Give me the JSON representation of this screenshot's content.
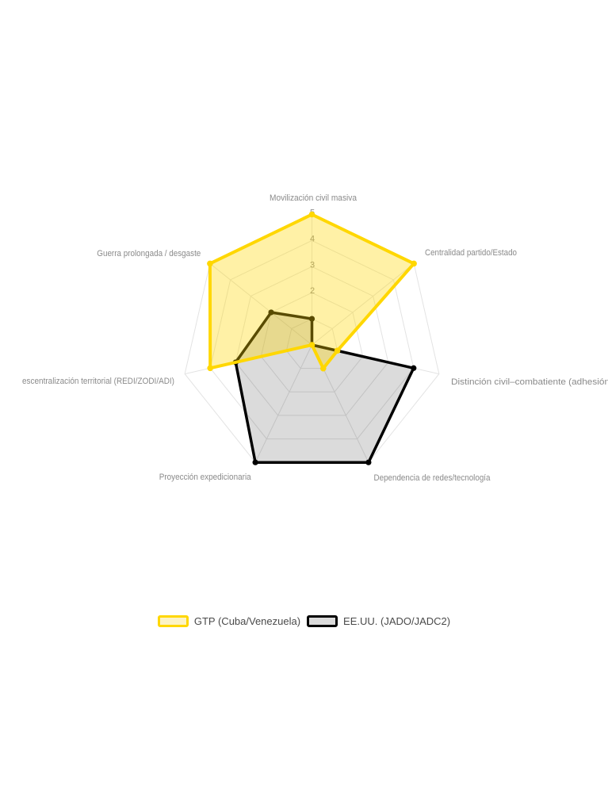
{
  "chart_data": {
    "type": "radar",
    "title": "",
    "categories": [
      "Movilización civil masiva",
      "Centralidad partido/Estado",
      "Distinción civil–combatiente (adhesión",
      "Dependencia de redes/tecnología",
      "Proyección expedicionaria",
      "escentralización territorial (REDI/ZODI/ADI)",
      "Guerra prolongada / desgaste"
    ],
    "series": [
      {
        "name": "GTP (Cuba/Venezuela)",
        "values": [
          5,
          5,
          1,
          1,
          0,
          4,
          5
        ],
        "color": "#FFD700",
        "fill": "rgba(255,215,0,0.35)"
      },
      {
        "name": "EE.UU. (JADO/JADC2)",
        "values": [
          1,
          0,
          4,
          5,
          5,
          3,
          2
        ],
        "color": "#000000",
        "fill": "rgba(0,0,0,0.14)"
      }
    ],
    "radial_ticks": [
      2,
      3,
      4,
      5
    ],
    "radial_range": [
      0,
      5
    ],
    "grid": true,
    "grid_color": "#e3e3e3",
    "axis_label_color": "#8a8a8a",
    "tick_label_color": "#8c8c8c",
    "legend_position": "bottom"
  },
  "legend": {
    "items": [
      {
        "label": "GTP (Cuba/Venezuela)",
        "border_color": "#FFD700",
        "fill_color": "#FCF3C5"
      },
      {
        "label": "EE.UU. (JADO/JADC2)",
        "border_color": "#000000",
        "fill_color": "#DBDBDB"
      }
    ]
  }
}
